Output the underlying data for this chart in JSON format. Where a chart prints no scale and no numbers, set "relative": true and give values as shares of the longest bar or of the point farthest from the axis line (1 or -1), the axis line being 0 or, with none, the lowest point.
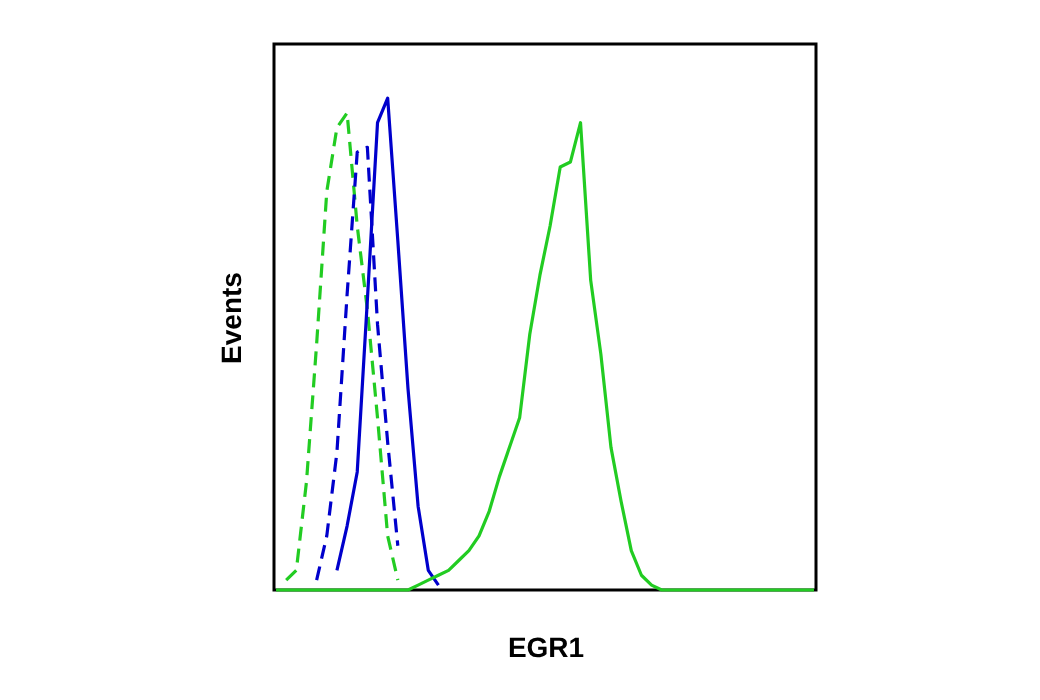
{
  "chart_data": {
    "type": "line",
    "relative": true,
    "xlabel": "EGR1",
    "ylabel": "Events",
    "grid": false,
    "categories": [
      null,
      null,
      null,
      null,
      null,
      null,
      null,
      null,
      null,
      null,
      null,
      null,
      null,
      null,
      null,
      null,
      null,
      null,
      null,
      null,
      null,
      null,
      null,
      null,
      null,
      null,
      null,
      null,
      null,
      null,
      null,
      null,
      null,
      null,
      null,
      null,
      null,
      null,
      null,
      null,
      null,
      null,
      null,
      null,
      null,
      null,
      null,
      null,
      null,
      null,
      null,
      null,
      null,
      null
    ],
    "series": [
      {
        "color": "#22cc22",
        "line_style": "dashed",
        "values": [
          null,
          0.02,
          0.04,
          0.22,
          0.5,
          0.81,
          0.94,
          0.97,
          0.74,
          0.57,
          0.35,
          0.11,
          0.02,
          null,
          null,
          null,
          null,
          null,
          null,
          null,
          null,
          null,
          null,
          null,
          null,
          null,
          null,
          null,
          null,
          null,
          null,
          null,
          null,
          null,
          null,
          null,
          null,
          null,
          null,
          null,
          null,
          null,
          null,
          null,
          null,
          null,
          null,
          null,
          null,
          null,
          null,
          null,
          null,
          null
        ]
      },
      {
        "color": "#0000cc",
        "line_style": "dashed",
        "values": [
          null,
          null,
          null,
          null,
          0.02,
          0.11,
          0.28,
          0.6,
          0.89,
          0.9,
          0.54,
          0.3,
          0.09,
          null,
          null,
          null,
          null,
          null,
          null,
          null,
          null,
          null,
          null,
          null,
          null,
          null,
          null,
          null,
          null,
          null,
          null,
          null,
          null,
          null,
          null,
          null,
          null,
          null,
          null,
          null,
          null,
          null,
          null,
          null,
          null,
          null,
          null,
          null,
          null,
          null,
          null,
          null,
          null,
          null
        ]
      },
      {
        "color": "#0000cc",
        "line_style": "solid",
        "values": [
          null,
          null,
          null,
          null,
          null,
          null,
          0.04,
          0.13,
          0.24,
          0.59,
          0.95,
          1,
          0.71,
          0.41,
          0.17,
          0.04,
          0.01,
          null,
          null,
          null,
          null,
          null,
          null,
          null,
          null,
          null,
          null,
          null,
          null,
          null,
          null,
          null,
          null,
          null,
          null,
          null,
          null,
          null,
          null,
          null,
          null,
          null,
          null,
          null,
          null,
          null,
          null,
          null,
          null,
          null,
          null,
          null,
          null,
          null
        ]
      },
      {
        "color": "#22cc22",
        "line_style": "solid",
        "values": [
          0,
          0,
          0,
          0,
          0,
          0,
          0,
          0,
          0,
          0,
          0,
          0,
          0,
          0,
          0.01,
          0.02,
          0.03,
          0.04,
          0.06,
          0.08,
          0.11,
          0.16,
          0.23,
          0.29,
          0.35,
          0.52,
          0.64,
          0.74,
          0.86,
          0.87,
          0.95,
          0.63,
          0.48,
          0.29,
          0.18,
          0.08,
          0.03,
          0.01,
          0,
          0,
          0,
          0,
          0,
          0,
          0,
          0,
          0,
          0,
          0,
          0,
          0,
          0,
          0,
          0
        ]
      }
    ]
  }
}
